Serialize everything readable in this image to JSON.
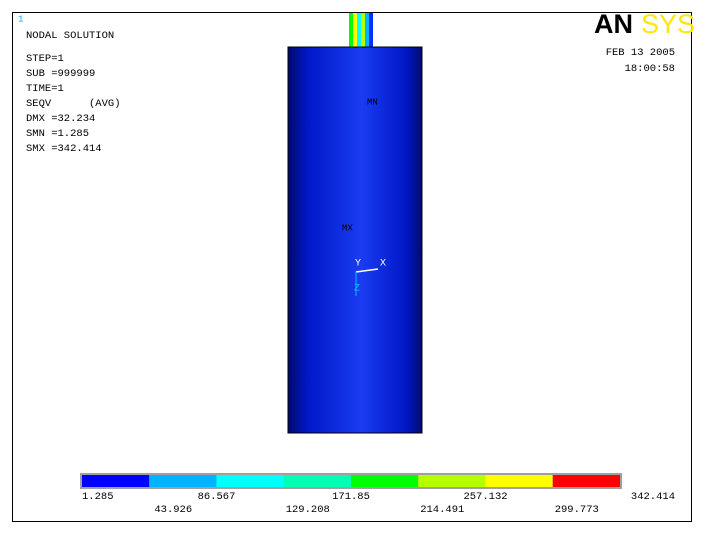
{
  "window_number": "1",
  "header": {
    "title": "NODAL SOLUTION",
    "lines": [
      "STEP=1",
      "SUB =999999",
      "TIME=1",
      "SEQV      (AVG)",
      "DMX =32.234",
      "SMN =1.285",
      "SMX =342.414"
    ]
  },
  "logo": {
    "parts": [
      "AN",
      "SYS"
    ]
  },
  "date": "FEB 13 2005",
  "time": "18:00:58",
  "model": {
    "min_marker": "MN",
    "max_marker": "MX"
  },
  "triad": {
    "y": "Y",
    "x": "X",
    "z": "Z"
  },
  "legend": {
    "labels": [
      "1.285",
      "43.926",
      "86.567",
      "129.208",
      "171.85",
      "214.491",
      "257.132",
      "299.773",
      "342.414"
    ],
    "colors": [
      "#0000ff",
      "#00b4ff",
      "#00ffff",
      "#00ffb4",
      "#00ff00",
      "#b4ff00",
      "#ffff00",
      "#ff0000"
    ]
  }
}
